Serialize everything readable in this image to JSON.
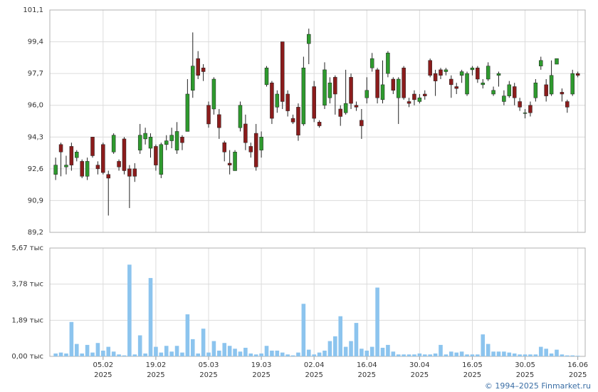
{
  "chart_data": [
    {
      "type": "candlestick",
      "open": [
        92.3,
        93.9,
        92.7,
        93.8,
        93.2,
        93.0,
        92.2,
        94.3,
        92.8,
        93.9,
        92.3,
        93.5,
        93.0,
        94.2,
        92.6,
        92.6,
        93.6,
        94.2,
        93.7,
        93.8,
        92.3,
        93.9,
        94.1,
        93.6,
        94.3,
        94.6,
        96.8,
        98.5,
        98.0,
        96.0,
        95.8,
        95.5,
        94.0,
        92.9,
        92.5,
        94.8,
        95.0,
        93.8,
        94.5,
        93.6,
        97.1,
        97.2,
        95.9,
        99.4,
        96.6,
        95.3,
        95.9,
        95.0,
        99.3,
        97.0,
        95.1,
        96.0,
        96.4,
        97.5,
        95.8,
        95.6,
        97.5,
        96.0,
        95.2,
        96.4,
        98.0,
        97.9,
        96.3,
        97.7,
        97.4,
        96.4,
        98.0,
        96.2,
        96.6,
        96.2,
        96.6,
        98.4,
        97.7,
        97.9,
        97.8,
        97.4,
        97.0,
        97.6,
        96.6,
        97.9,
        98.0,
        97.1,
        97.4,
        96.6,
        97.6,
        96.2,
        96.5,
        97.0,
        96.2,
        95.6,
        96.0,
        96.4,
        98.1,
        97.1,
        96.6,
        98.2,
        96.7,
        96.2,
        96.6,
        97.7
      ],
      "high": [
        93.2,
        94.0,
        93.3,
        94.0,
        93.6,
        93.1,
        93.2,
        94.3,
        93.0,
        94.0,
        92.5,
        94.5,
        93.1,
        94.3,
        92.8,
        92.9,
        95.0,
        94.8,
        94.5,
        93.9,
        94.0,
        94.4,
        94.8,
        95.1,
        94.4,
        97.4,
        99.9,
        98.9,
        98.2,
        96.2,
        97.5,
        95.8,
        94.1,
        93.6,
        93.6,
        96.2,
        95.5,
        94.0,
        95.0,
        94.6,
        98.1,
        97.3,
        96.8,
        99.4,
        96.8,
        95.5,
        96.1,
        98.6,
        100.1,
        97.3,
        95.2,
        98.3,
        97.5,
        97.6,
        96.0,
        97.9,
        97.7,
        96.2,
        95.8,
        97.5,
        98.8,
        98.0,
        98.4,
        98.9,
        97.5,
        97.5,
        98.1,
        96.4,
        96.8,
        96.6,
        96.8,
        98.5,
        97.9,
        98.0,
        98.0,
        97.6,
        97.2,
        97.9,
        97.8,
        98.1,
        98.1,
        97.4,
        98.3,
        97.0,
        97.8,
        96.8,
        97.3,
        97.2,
        96.4,
        95.8,
        96.2,
        97.4,
        98.6,
        97.4,
        98.4,
        98.5,
        96.9,
        96.3,
        97.9,
        97.8
      ],
      "low": [
        92.0,
        92.2,
        92.3,
        92.5,
        93.0,
        92.1,
        92.0,
        93.2,
        92.3,
        92.3,
        90.1,
        93.4,
        92.5,
        92.3,
        90.5,
        91.9,
        93.4,
        93.9,
        93.2,
        92.5,
        92.1,
        93.6,
        93.7,
        93.4,
        93.6,
        94.6,
        96.4,
        97.4,
        97.3,
        94.8,
        95.5,
        94.2,
        93.0,
        92.3,
        92.5,
        94.6,
        93.6,
        93.2,
        92.5,
        93.2,
        97.0,
        95.0,
        95.6,
        95.8,
        95.4,
        95.0,
        94.1,
        94.9,
        98.2,
        95.1,
        94.8,
        95.8,
        96.1,
        95.5,
        94.9,
        95.5,
        95.8,
        95.7,
        94.2,
        96.1,
        97.8,
        96.1,
        96.1,
        97.5,
        96.6,
        95.0,
        96.3,
        95.9,
        96.0,
        96.1,
        96.3,
        97.5,
        96.5,
        97.4,
        97.6,
        96.4,
        96.6,
        97.2,
        96.5,
        97.6,
        97.2,
        96.9,
        97.3,
        96.5,
        97.0,
        96.0,
        96.4,
        96.0,
        95.7,
        95.3,
        95.4,
        96.2,
        97.9,
        96.2,
        96.5,
        98.2,
        96.2,
        95.6,
        96.5,
        97.5
      ],
      "close": [
        92.8,
        93.5,
        92.8,
        92.8,
        93.5,
        92.2,
        93.0,
        93.3,
        92.6,
        92.4,
        92.1,
        94.4,
        92.7,
        92.5,
        92.2,
        92.2,
        94.4,
        94.5,
        94.3,
        92.8,
        93.9,
        94.1,
        94.4,
        94.6,
        94.0,
        96.6,
        98.1,
        97.6,
        97.8,
        95.0,
        97.4,
        94.8,
        93.5,
        92.8,
        93.5,
        96.0,
        94.0,
        93.5,
        92.7,
        94.3,
        98.0,
        95.3,
        96.6,
        96.2,
        95.7,
        95.1,
        94.4,
        98.0,
        99.8,
        95.3,
        94.9,
        97.9,
        97.2,
        96.6,
        95.4,
        96.1,
        96.1,
        95.9,
        94.9,
        96.8,
        98.5,
        96.4,
        97.1,
        98.8,
        96.8,
        97.4,
        96.4,
        96.1,
        96.3,
        96.4,
        96.5,
        97.6,
        97.3,
        97.6,
        97.9,
        97.1,
        96.9,
        97.8,
        97.7,
        98.0,
        97.4,
        97.2,
        98.1,
        96.8,
        97.7,
        96.5,
        97.1,
        96.4,
        95.9,
        95.6,
        95.6,
        97.2,
        98.4,
        96.5,
        97.6,
        98.5,
        96.6,
        95.9,
        97.7,
        97.6
      ],
      "up_color": "#2e9a2e",
      "down_color": "#8b1c1c",
      "xlim": [
        -1.1,
        100.4
      ],
      "ylim": [
        89.2,
        101.1
      ],
      "yticks": [
        {
          "value": 89.2,
          "label": "89,2"
        },
        {
          "value": 90.9,
          "label": "90,9"
        },
        {
          "value": 92.6,
          "label": "92,6"
        },
        {
          "value": 94.3,
          "label": "94,3"
        },
        {
          "value": 96.0,
          "label": "96,0"
        },
        {
          "value": 97.7,
          "label": "97,7"
        },
        {
          "value": 99.4,
          "label": "99,4"
        },
        {
          "value": 101.1,
          "label": "101,1"
        }
      ],
      "grid": true
    },
    {
      "type": "bar",
      "values": [
        0.15,
        0.2,
        0.15,
        1.8,
        0.65,
        0.15,
        0.6,
        0.2,
        0.7,
        0.3,
        0.5,
        0.25,
        0.1,
        0.05,
        4.8,
        0.1,
        1.1,
        0.15,
        4.1,
        0.5,
        0.2,
        0.55,
        0.25,
        0.55,
        0.2,
        2.2,
        0.9,
        0.15,
        1.45,
        0.2,
        0.8,
        0.3,
        0.7,
        0.55,
        0.4,
        0.25,
        0.45,
        0.15,
        0.1,
        0.15,
        0.55,
        0.3,
        0.3,
        0.2,
        0.1,
        0.05,
        0.2,
        2.75,
        0.35,
        0.1,
        0.2,
        0.3,
        0.8,
        1.05,
        2.1,
        0.5,
        0.8,
        1.75,
        0.4,
        0.3,
        0.5,
        3.6,
        0.45,
        0.6,
        0.25,
        0.1,
        0.1,
        0.1,
        0.1,
        0.15,
        0.1,
        0.1,
        0.15,
        0.6,
        0.1,
        0.25,
        0.2,
        0.25,
        0.1,
        0.1,
        0.1,
        1.15,
        0.65,
        0.25,
        0.25,
        0.25,
        0.2,
        0.15,
        0.1,
        0.1,
        0.1,
        0.1,
        0.5,
        0.4,
        0.15,
        0.35,
        0.1,
        0.05,
        0.05,
        0.03
      ],
      "color": "#8cc4ee",
      "xlim": [
        -1.1,
        100.4
      ],
      "ylim": [
        0,
        5.67
      ],
      "yticks": [
        {
          "value": 0,
          "label": "0,00 тыс"
        },
        {
          "value": 1.89,
          "label": "1,89 тыс"
        },
        {
          "value": 3.78,
          "label": "3,78 тыс"
        },
        {
          "value": 5.67,
          "label": "5,67 тыс"
        }
      ],
      "xticks": [
        {
          "value": 9,
          "label": "05.02",
          "year": "2025"
        },
        {
          "value": 19,
          "label": "19.02",
          "year": "2025"
        },
        {
          "value": 29,
          "label": "05.03",
          "year": "2025"
        },
        {
          "value": 39,
          "label": "19.03",
          "year": "2025"
        },
        {
          "value": 49,
          "label": "02.04",
          "year": "2025"
        },
        {
          "value": 59,
          "label": "16.04",
          "year": "2025"
        },
        {
          "value": 69,
          "label": "30.04",
          "year": "2025"
        },
        {
          "value": 79,
          "label": "16.05",
          "year": "2025"
        },
        {
          "value": 89,
          "label": "30.05",
          "year": "2025"
        },
        {
          "value": 99,
          "label": "16.06",
          "year": "2025"
        }
      ],
      "grid": true
    }
  ],
  "footer": {
    "copyright": "© 1994–2025 Finmarket.ru"
  }
}
